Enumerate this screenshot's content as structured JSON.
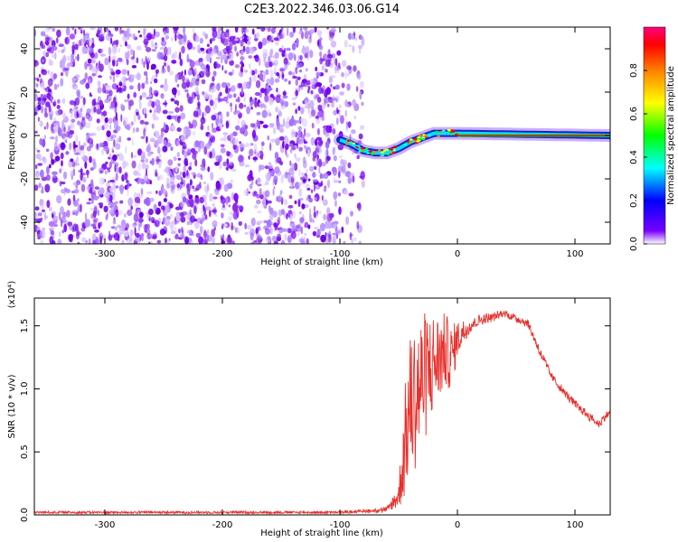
{
  "chart_data": [
    {
      "type": "heatmap",
      "title": "C2E3.2022.346.03.06.G14",
      "xlabel": "Height of straight line (km)",
      "ylabel": "Frequency (Hz)",
      "xlim": [
        -360,
        130
      ],
      "ylim": [
        -50,
        50
      ],
      "xticks": [
        -300,
        -200,
        -100,
        0,
        100
      ],
      "yticks": [
        -40,
        -20,
        0,
        20,
        40
      ],
      "colorbar": {
        "label": "Normalized spectral amplitude",
        "range": [
          0,
          1
        ],
        "ticks": [
          "0.0",
          "0.2",
          "0.4",
          "0.6",
          "0.8"
        ],
        "colors": [
          "#ffffff",
          "#7700ff",
          "#0000ff",
          "#00ffff",
          "#00ff00",
          "#ffff00",
          "#ff8000",
          "#ff0000",
          "#ff0080"
        ]
      },
      "noise_region": {
        "x": [
          -360,
          -80
        ],
        "y": [
          -50,
          50
        ]
      },
      "signal_track": {
        "x": [
          -100,
          -90,
          -80,
          -70,
          -60,
          -50,
          -40,
          -30,
          -20,
          -10,
          0,
          130
        ],
        "y": [
          -2,
          -4,
          -7,
          -8,
          -8,
          -6,
          -3,
          -1,
          1,
          1,
          1,
          0
        ]
      }
    },
    {
      "type": "line",
      "xlabel": "Height of straight line (km)",
      "ylabel": "SNR (10 * v/v)",
      "yscale_label": "(x10⁴)",
      "xlim": [
        -360,
        130
      ],
      "ylim": [
        0,
        1.72
      ],
      "xticks": [
        -300,
        -200,
        -100,
        0,
        100
      ],
      "yticks": [
        "0.0",
        "0.5",
        "1.0",
        "1.5"
      ],
      "line_color": "#e8302c",
      "series": [
        {
          "x": [
            -360,
            -300,
            -200,
            -100,
            -60,
            -50,
            -45,
            -40,
            -35,
            -30,
            -25,
            -20,
            -15,
            -10,
            -5,
            0,
            10,
            20,
            30,
            40,
            50,
            60,
            70,
            80,
            90,
            100,
            110,
            120,
            130
          ],
          "values": [
            0.02,
            0.02,
            0.02,
            0.02,
            0.04,
            0.15,
            0.55,
            0.9,
            0.95,
            1.05,
            1.15,
            1.2,
            1.25,
            1.3,
            1.25,
            1.4,
            1.5,
            1.55,
            1.57,
            1.6,
            1.56,
            1.52,
            1.3,
            1.1,
            0.98,
            0.88,
            0.8,
            0.72,
            0.82
          ],
          "spread": [
            0,
            0,
            0,
            0,
            0.02,
            0.1,
            0.45,
            0.55,
            0.6,
            0.55,
            0.5,
            0.4,
            0.35,
            0.3,
            0.25,
            0.15,
            0.06,
            0.04,
            0.03,
            0.03,
            0.03,
            0.03,
            0.04,
            0.03,
            0.03,
            0.03,
            0.03,
            0.03,
            0.03
          ]
        }
      ]
    }
  ]
}
